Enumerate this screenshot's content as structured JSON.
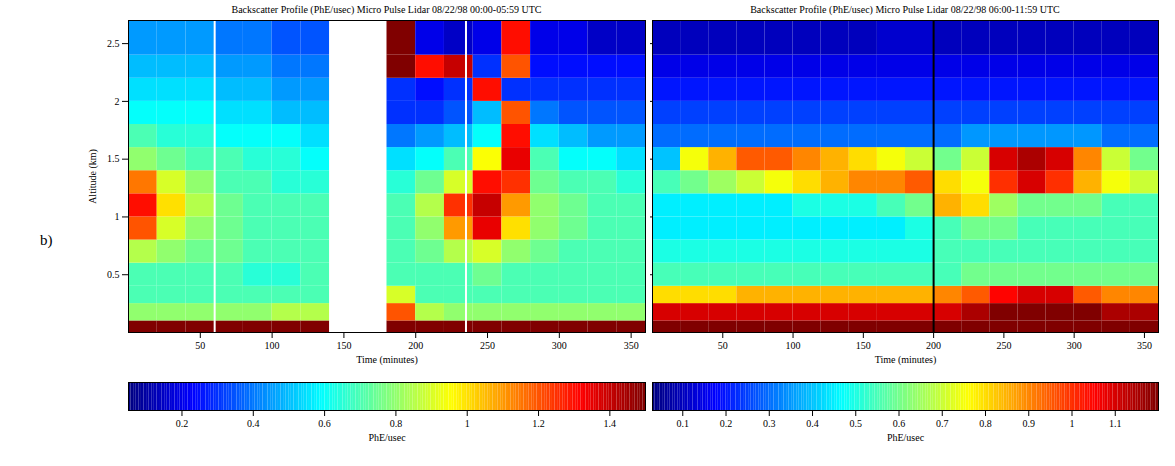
{
  "panel_label": "b)",
  "chart_data": [
    {
      "type": "heatmap",
      "title": "Backscatter Profile (PhE/usec) Micro Pulse Lidar 08/22/98 00:00-05:59 UTC",
      "x_label": "Time (minutes)",
      "y_label": "Altitude (km)",
      "xlim": [
        0,
        360
      ],
      "ylim": [
        0,
        2.7
      ],
      "xticks": [
        50,
        100,
        150,
        200,
        250,
        300,
        350
      ],
      "yticks": [
        0.5,
        1,
        1.5,
        2,
        2.5
      ],
      "tick_labels": true,
      "separator_lines": [
        60,
        235
      ],
      "x_edges": [
        0,
        20,
        40,
        60,
        80,
        100,
        120,
        140,
        160,
        180,
        200,
        220,
        240,
        260,
        280,
        300,
        320,
        340,
        360
      ],
      "y_edges": [
        0,
        0.1,
        0.25,
        0.4,
        0.6,
        0.8,
        1.0,
        1.2,
        1.4,
        1.6,
        1.8,
        2.0,
        2.2,
        2.4,
        2.7
      ],
      "cells": [
        [
          1.5,
          1.5,
          1.5,
          1.5,
          1.5,
          1.5,
          1.5,
          null,
          null,
          1.5,
          1.5,
          1.5,
          1.5,
          1.5,
          1.5,
          1.5,
          1.5,
          1.5
        ],
        [
          0.8,
          0.8,
          0.8,
          0.8,
          0.8,
          0.85,
          0.85,
          null,
          null,
          1.2,
          0.85,
          0.8,
          0.8,
          0.8,
          0.8,
          0.8,
          0.8,
          0.8
        ],
        [
          0.7,
          0.7,
          0.7,
          0.7,
          0.7,
          0.7,
          0.7,
          null,
          null,
          0.9,
          0.7,
          0.7,
          0.7,
          0.7,
          0.7,
          0.7,
          0.7,
          0.7
        ],
        [
          0.7,
          0.7,
          0.7,
          0.7,
          0.65,
          0.65,
          0.7,
          null,
          null,
          0.7,
          0.7,
          0.7,
          0.75,
          0.7,
          0.7,
          0.7,
          0.7,
          0.7
        ],
        [
          0.85,
          0.8,
          0.75,
          0.75,
          0.7,
          0.7,
          0.7,
          null,
          null,
          0.7,
          0.75,
          0.85,
          0.9,
          0.8,
          0.75,
          0.7,
          0.7,
          0.7
        ],
        [
          1.2,
          0.9,
          0.8,
          0.75,
          0.7,
          0.7,
          0.7,
          null,
          null,
          0.7,
          0.8,
          1.1,
          1.35,
          1.0,
          0.8,
          0.75,
          0.7,
          0.7
        ],
        [
          1.3,
          1.0,
          0.85,
          0.75,
          0.7,
          0.7,
          0.7,
          null,
          null,
          0.7,
          0.85,
          1.25,
          1.4,
          1.1,
          0.8,
          0.75,
          0.7,
          0.7
        ],
        [
          1.15,
          0.9,
          0.8,
          0.7,
          0.7,
          0.65,
          0.65,
          null,
          null,
          0.65,
          0.75,
          0.9,
          1.3,
          1.25,
          0.75,
          0.7,
          0.7,
          0.65
        ],
        [
          0.8,
          0.75,
          0.7,
          0.7,
          0.65,
          0.65,
          0.6,
          null,
          null,
          0.55,
          0.6,
          0.7,
          0.95,
          1.35,
          0.7,
          0.6,
          0.6,
          0.55
        ],
        [
          0.7,
          0.65,
          0.65,
          0.6,
          0.6,
          0.6,
          0.55,
          null,
          null,
          0.4,
          0.45,
          0.5,
          0.6,
          1.3,
          0.55,
          0.5,
          0.45,
          0.45
        ],
        [
          0.6,
          0.6,
          0.6,
          0.55,
          0.55,
          0.5,
          0.5,
          null,
          null,
          0.3,
          0.3,
          0.35,
          0.5,
          1.2,
          0.4,
          0.35,
          0.35,
          0.35
        ],
        [
          0.55,
          0.55,
          0.55,
          0.5,
          0.5,
          0.45,
          0.45,
          null,
          null,
          0.3,
          0.25,
          0.3,
          1.3,
          0.3,
          0.3,
          0.3,
          0.3,
          0.3
        ],
        [
          0.5,
          0.5,
          0.5,
          0.45,
          0.45,
          0.4,
          0.4,
          null,
          null,
          1.5,
          1.3,
          1.4,
          0.3,
          1.2,
          0.25,
          0.25,
          0.25,
          0.25
        ],
        [
          0.45,
          0.45,
          0.45,
          0.4,
          0.4,
          0.35,
          0.35,
          null,
          null,
          1.5,
          0.2,
          0.15,
          0.2,
          1.3,
          0.2,
          0.2,
          0.15,
          0.15
        ]
      ],
      "colorbar": {
        "range": [
          0.05,
          1.5
        ],
        "ticks": [
          0.2,
          0.4,
          0.6,
          0.8,
          1,
          1.2,
          1.4
        ],
        "label": "PhE/usec"
      }
    },
    {
      "type": "heatmap",
      "title": "Backscatter Profile (PhE/usec) Micro Pulse Lidar 08/22/98 06:00-11:59 UTC",
      "x_label": "Time (minutes)",
      "xlim": [
        0,
        360
      ],
      "ylim": [
        0,
        2.7
      ],
      "xticks": [
        50,
        100,
        150,
        200,
        250,
        300,
        350
      ],
      "yticks": [
        0.5,
        1,
        1.5,
        2,
        2.5
      ],
      "tick_labels": "x",
      "marker_line": 200,
      "x_edges": [
        0,
        20,
        40,
        60,
        80,
        100,
        120,
        140,
        160,
        180,
        200,
        220,
        240,
        260,
        280,
        300,
        320,
        340,
        360
      ],
      "y_edges": [
        0,
        0.1,
        0.25,
        0.4,
        0.6,
        0.8,
        1.0,
        1.2,
        1.4,
        1.6,
        1.8,
        2.0,
        2.2,
        2.4,
        2.7
      ],
      "cells": [
        [
          1.2,
          1.2,
          1.2,
          1.2,
          1.2,
          1.2,
          1.2,
          1.2,
          1.2,
          1.2,
          1.2,
          1.2,
          1.2,
          1.2,
          1.2,
          1.2,
          1.2,
          1.2
        ],
        [
          1.1,
          1.1,
          1.1,
          1.1,
          1.1,
          1.1,
          1.1,
          1.1,
          1.1,
          1.1,
          1.1,
          1.15,
          1.2,
          1.2,
          1.2,
          1.2,
          1.15,
          1.15
        ],
        [
          0.8,
          0.8,
          0.8,
          0.85,
          0.85,
          0.85,
          0.85,
          0.85,
          0.85,
          0.85,
          0.9,
          0.95,
          1.05,
          1.1,
          1.1,
          0.95,
          0.9,
          0.9
        ],
        [
          0.55,
          0.55,
          0.55,
          0.55,
          0.55,
          0.55,
          0.55,
          0.55,
          0.55,
          0.55,
          0.55,
          0.6,
          0.6,
          0.6,
          0.6,
          0.6,
          0.6,
          0.6
        ],
        [
          0.5,
          0.5,
          0.5,
          0.5,
          0.5,
          0.5,
          0.5,
          0.5,
          0.5,
          0.5,
          0.55,
          0.55,
          0.55,
          0.55,
          0.55,
          0.55,
          0.55,
          0.55
        ],
        [
          0.45,
          0.45,
          0.45,
          0.45,
          0.45,
          0.45,
          0.45,
          0.45,
          0.45,
          0.5,
          0.55,
          0.6,
          0.6,
          0.55,
          0.55,
          0.55,
          0.55,
          0.55
        ],
        [
          0.45,
          0.45,
          0.45,
          0.45,
          0.45,
          0.5,
          0.5,
          0.5,
          0.55,
          0.6,
          0.85,
          0.8,
          0.65,
          0.6,
          0.6,
          0.6,
          0.55,
          0.55
        ],
        [
          0.55,
          0.6,
          0.65,
          0.7,
          0.75,
          0.8,
          0.85,
          0.9,
          0.9,
          0.95,
          0.8,
          0.75,
          1.0,
          1.1,
          1.0,
          0.85,
          0.75,
          0.7
        ],
        [
          0.4,
          0.75,
          0.85,
          0.95,
          0.95,
          0.9,
          0.85,
          0.8,
          0.75,
          0.7,
          0.6,
          0.7,
          1.1,
          1.15,
          1.1,
          0.9,
          0.7,
          0.6
        ],
        [
          0.3,
          0.3,
          0.3,
          0.3,
          0.3,
          0.3,
          0.3,
          0.3,
          0.3,
          0.3,
          0.3,
          0.35,
          0.35,
          0.35,
          0.35,
          0.35,
          0.3,
          0.3
        ],
        [
          0.25,
          0.25,
          0.25,
          0.25,
          0.25,
          0.25,
          0.25,
          0.25,
          0.25,
          0.25,
          0.25,
          0.25,
          0.25,
          0.25,
          0.25,
          0.25,
          0.25,
          0.25
        ],
        [
          0.2,
          0.2,
          0.2,
          0.2,
          0.2,
          0.2,
          0.2,
          0.2,
          0.2,
          0.2,
          0.2,
          0.2,
          0.2,
          0.2,
          0.2,
          0.2,
          0.2,
          0.2
        ],
        [
          0.15,
          0.15,
          0.15,
          0.15,
          0.15,
          0.15,
          0.15,
          0.15,
          0.15,
          0.15,
          0.15,
          0.15,
          0.15,
          0.15,
          0.15,
          0.15,
          0.15,
          0.15
        ],
        [
          0.1,
          0.1,
          0.1,
          0.1,
          0.1,
          0.1,
          0.1,
          0.1,
          0.12,
          0.12,
          0.1,
          0.1,
          0.1,
          0.1,
          0.1,
          0.1,
          0.1,
          0.1
        ]
      ],
      "colorbar": {
        "range": [
          0.03,
          1.2
        ],
        "ticks": [
          0.1,
          0.2,
          0.3,
          0.4,
          0.5,
          0.6,
          0.7,
          0.8,
          0.9,
          1,
          1.1
        ],
        "label": "PhE/usec"
      }
    }
  ]
}
